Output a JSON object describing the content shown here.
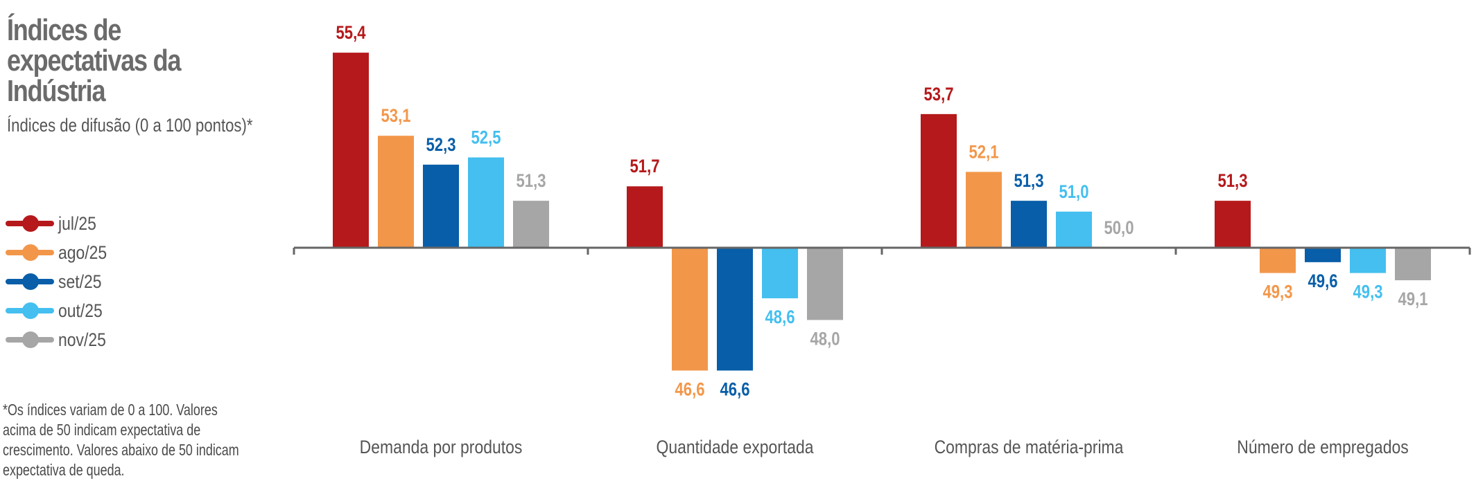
{
  "title": "Índices de expectativas da Indústria",
  "subtitle": "Índices de difusão (0 a 100 pontos)*",
  "footnote": "*Os índices variam de 0 a 100. Valores acima de 50 indicam expectativa de crescimento. Valores abaixo de 50 indicam expectativa de queda.",
  "legend": [
    {
      "label": "jul/25",
      "color": "#B5191B"
    },
    {
      "label": "ago/25",
      "color": "#F2974A"
    },
    {
      "label": "set/25",
      "color": "#085EA8"
    },
    {
      "label": "out/25",
      "color": "#44BFEF"
    },
    {
      "label": "nov/25",
      "color": "#A6A6A6"
    }
  ],
  "chart_data": {
    "type": "bar",
    "title": "Índices de expectativas da Indústria",
    "subtitle": "Índices de difusão (0 a 100 pontos)*",
    "xlabel": "",
    "ylabel": "",
    "baseline": 50,
    "ylim": [
      46,
      56
    ],
    "grid": false,
    "legend_position": "left",
    "categories": [
      "Demanda por produtos",
      "Quantidade exportada",
      "Compras de matéria-prima",
      "Número de empregados"
    ],
    "series": [
      {
        "name": "jul/25",
        "color": "#B5191B",
        "values": [
          55.4,
          51.7,
          53.7,
          51.3
        ],
        "labels": [
          "55,4",
          "51,7",
          "53,7",
          "51,3"
        ]
      },
      {
        "name": "ago/25",
        "color": "#F2974A",
        "values": [
          53.1,
          46.6,
          52.1,
          49.3
        ],
        "labels": [
          "53,1",
          "46,6",
          "52,1",
          "49,3"
        ]
      },
      {
        "name": "set/25",
        "color": "#085EA8",
        "values": [
          52.3,
          46.6,
          51.3,
          49.6
        ],
        "labels": [
          "52,3",
          "46,6",
          "51,3",
          "49,6"
        ]
      },
      {
        "name": "out/25",
        "color": "#44BFEF",
        "values": [
          52.5,
          48.6,
          51.0,
          49.3
        ],
        "labels": [
          "52,5",
          "48,6",
          "51,0",
          "49,3"
        ]
      },
      {
        "name": "nov/25",
        "color": "#A6A6A6",
        "values": [
          51.3,
          48.0,
          50.0,
          49.1
        ],
        "labels": [
          "51,3",
          "48,0",
          "50,0",
          "49,1"
        ]
      }
    ]
  }
}
